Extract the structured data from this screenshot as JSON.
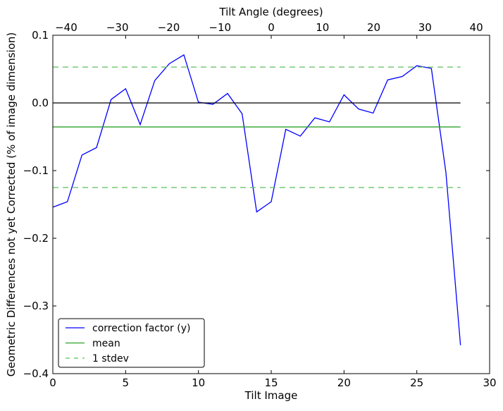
{
  "chart_data": {
    "type": "line",
    "xlabel": "Tilt Image",
    "ylabel": "Geometric Differences not yet Corrected (% of image dimension)",
    "top_xlabel": "Tilt Angle (degrees)",
    "xlim": [
      0,
      30
    ],
    "ylim": [
      -0.4,
      0.1
    ],
    "top_xlim": [
      -42.6,
      42.6
    ],
    "xticks": [
      0,
      5,
      10,
      15,
      20,
      25,
      30
    ],
    "yticks": [
      -0.4,
      -0.3,
      -0.2,
      -0.1,
      0.0,
      0.1
    ],
    "ytick_labels": [
      "−0.4",
      "−0.3",
      "−0.2",
      "−0.1",
      "0.0",
      "0.1"
    ],
    "top_xticks": [
      -40,
      -30,
      -20,
      -10,
      0,
      10,
      20,
      30,
      40
    ],
    "top_xtick_labels": [
      "−40",
      "−30",
      "−20",
      "−10",
      "0",
      "10",
      "20",
      "30",
      "40"
    ],
    "series": [
      {
        "name": "correction factor (y)",
        "color": "#0000ff",
        "style": "solid",
        "x": [
          0,
          1,
          2,
          3,
          4,
          5,
          6,
          7,
          8,
          9,
          10,
          11,
          12,
          13,
          14,
          15,
          16,
          17,
          18,
          19,
          20,
          21,
          22,
          23,
          24,
          25,
          26,
          27,
          28
        ],
        "y": [
          -0.154,
          -0.146,
          -0.077,
          -0.066,
          0.005,
          0.021,
          -0.032,
          0.033,
          0.058,
          0.071,
          0.001,
          -0.002,
          0.014,
          -0.016,
          -0.161,
          -0.146,
          -0.039,
          -0.049,
          -0.022,
          -0.028,
          0.012,
          -0.009,
          -0.015,
          0.034,
          0.039,
          0.055,
          0.051,
          -0.103,
          -0.358
        ]
      },
      {
        "name": "mean",
        "color": "#2ca02c",
        "style": "solid",
        "x": [
          0,
          28
        ],
        "y": [
          -0.0355,
          -0.0355
        ]
      },
      {
        "name": "1 stdev",
        "color": "#5cbf5c",
        "style": "dashed",
        "x": [
          0,
          28
        ],
        "y": [
          0.053,
          0.053
        ]
      },
      {
        "name": "1 stdev (lower)",
        "color": "#5cbf5c",
        "style": "dashed",
        "x": [
          0,
          28
        ],
        "y": [
          -0.125,
          -0.125
        ],
        "legend": false
      },
      {
        "name": "zero",
        "color": "#000000",
        "style": "solid",
        "x": [
          0,
          28
        ],
        "y": [
          0,
          0
        ],
        "legend": false
      }
    ],
    "legend_position": "bottom-left",
    "grid": false
  }
}
